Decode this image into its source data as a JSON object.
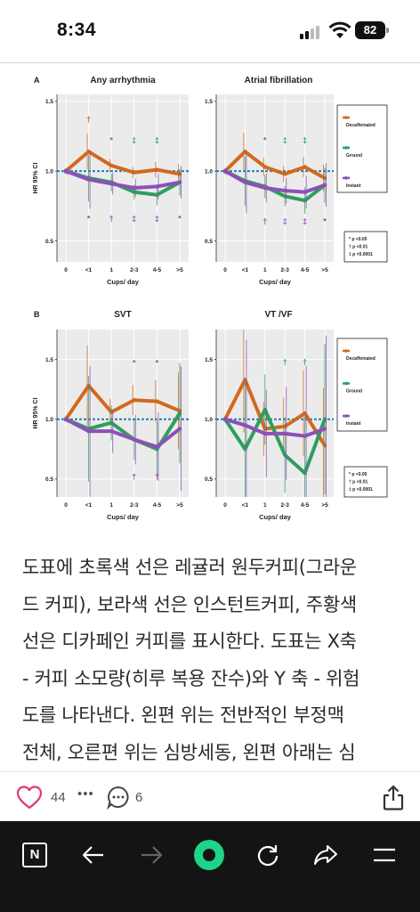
{
  "status": {
    "time": "8:34",
    "battery": "82"
  },
  "figure": {
    "panels": [
      {
        "letter": "A",
        "title": "Any arrhythmia"
      },
      {
        "letter": "",
        "title": "Atrial fibrillation"
      },
      {
        "letter": "B",
        "title": "SVT"
      },
      {
        "letter": "",
        "title": "VT /VF"
      }
    ],
    "ylabel": "HR 95% CI",
    "xlabel": "Cups/ day",
    "xticks": [
      "0",
      "<1",
      "1",
      "2-3",
      "4-5",
      ">5"
    ],
    "legend": {
      "decaf": "Decaffeinated",
      "ground": "Ground",
      "instant": "Instant"
    },
    "pvalues": [
      "* p <0.05",
      "† p <0.01",
      "‡ p <0.0001"
    ],
    "colors": {
      "decaf": "#d2691e",
      "ground": "#2e9e5b",
      "instant": "#8e4fb8",
      "ref": "#1f7fb0"
    }
  },
  "chart_data": [
    {
      "type": "line",
      "title": "Any arrhythmia",
      "xlabel": "Cups/ day",
      "ylabel": "HR 95% CI",
      "categories": [
        "0",
        "<1",
        "1",
        "2-3",
        "4-5",
        ">5"
      ],
      "ylim": [
        0.35,
        1.55
      ],
      "yticks": [
        0.5,
        1.0,
        1.5
      ],
      "series": [
        {
          "name": "Decaffeinated",
          "values": [
            1.0,
            1.14,
            1.04,
            0.99,
            1.01,
            0.98
          ]
        },
        {
          "name": "Ground",
          "values": [
            1.0,
            0.95,
            0.92,
            0.85,
            0.83,
            0.92
          ]
        },
        {
          "name": "Instant",
          "values": [
            1.0,
            0.94,
            0.91,
            0.88,
            0.89,
            0.92
          ]
        }
      ]
    },
    {
      "type": "line",
      "title": "Atrial fibrillation",
      "xlabel": "Cups/ day",
      "categories": [
        "0",
        "<1",
        "1",
        "2-3",
        "4-5",
        ">5"
      ],
      "ylim": [
        0.35,
        1.55
      ],
      "yticks": [
        0.5,
        1.0,
        1.5
      ],
      "series": [
        {
          "name": "Decaffeinated",
          "values": [
            1.0,
            1.14,
            1.03,
            0.98,
            1.03,
            0.95
          ]
        },
        {
          "name": "Ground",
          "values": [
            1.0,
            0.93,
            0.89,
            0.82,
            0.79,
            0.9
          ]
        },
        {
          "name": "Instant",
          "values": [
            1.0,
            0.92,
            0.88,
            0.86,
            0.85,
            0.9
          ]
        }
      ]
    },
    {
      "type": "line",
      "title": "SVT",
      "xlabel": "Cups/ day",
      "ylabel": "HR 95% CI",
      "categories": [
        "0",
        "<1",
        "1",
        "2-3",
        "4-5",
        ">5"
      ],
      "ylim": [
        0.35,
        1.75
      ],
      "yticks": [
        0.5,
        1.0,
        1.5
      ],
      "series": [
        {
          "name": "Decaffeinated",
          "values": [
            1.0,
            1.28,
            1.06,
            1.16,
            1.15,
            1.07
          ]
        },
        {
          "name": "Ground",
          "values": [
            1.0,
            0.92,
            0.97,
            0.83,
            0.75,
            1.05
          ]
        },
        {
          "name": "Instant",
          "values": [
            1.0,
            0.9,
            0.9,
            0.83,
            0.77,
            0.92
          ]
        }
      ]
    },
    {
      "type": "line",
      "title": "VT /VF",
      "xlabel": "Cups/ day",
      "categories": [
        "0",
        "<1",
        "1",
        "2-3",
        "4-5",
        ">5"
      ],
      "ylim": [
        0.35,
        1.75
      ],
      "yticks": [
        0.5,
        1.0,
        1.5
      ],
      "series": [
        {
          "name": "Decaffeinated",
          "values": [
            1.0,
            1.33,
            0.92,
            0.94,
            1.05,
            0.78
          ]
        },
        {
          "name": "Ground",
          "values": [
            1.0,
            0.75,
            1.08,
            0.7,
            0.55,
            1.0
          ]
        },
        {
          "name": "Instant",
          "values": [
            1.0,
            0.95,
            0.88,
            0.88,
            0.86,
            0.92
          ]
        }
      ]
    }
  ],
  "article": {
    "lines": [
      "도표에 초록색 선은 레귤러 원두커피(그라운",
      "드 커피), 보라색 선은 인스턴트커피, 주황색",
      "선은 디카페인 커피를 표시한다. 도표는 X축",
      "- 커피 소모량(히루 복용 잔수)와 Y 축 - 위험",
      "도를 나타낸다.  왼편 위는 전반적인 부정맥",
      "전체, 오른편 위는 심방세동, 왼편 아래는 심"
    ]
  },
  "actions": {
    "likes": "44",
    "more": "•••",
    "comments": "6"
  },
  "nav": {
    "logo": "N"
  }
}
